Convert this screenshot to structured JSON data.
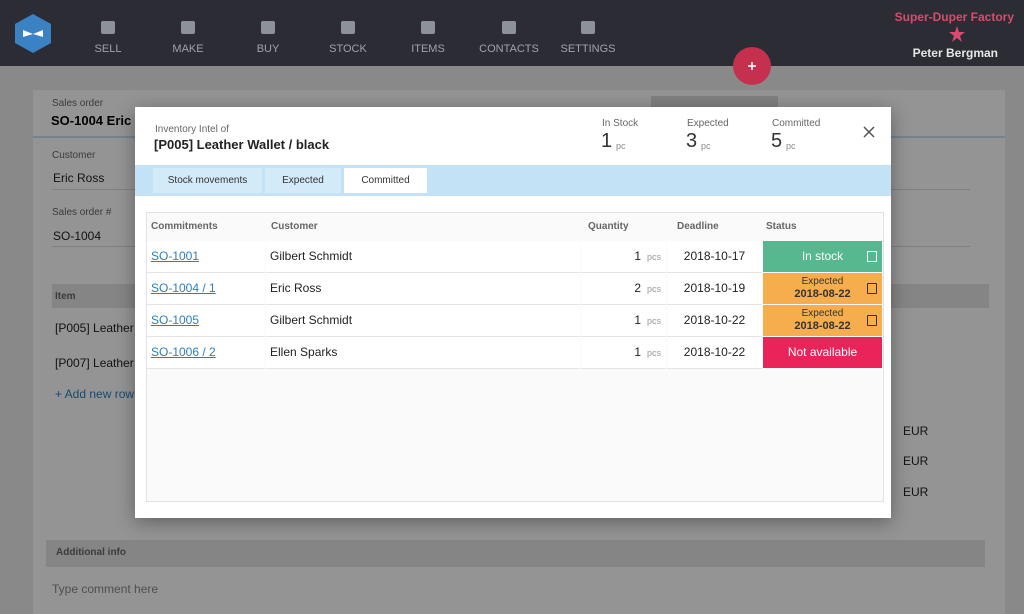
{
  "nav": {
    "items": [
      "SELL",
      "MAKE",
      "BUY",
      "STOCK",
      "ITEMS",
      "CONTACTS",
      "SETTINGS"
    ],
    "company": "Super-Duper Factory",
    "user": "Peter Bergman"
  },
  "order": {
    "heading": "Sales order",
    "title": "SO-1004  Eric",
    "customer_label": "Customer",
    "customer": "Eric Ross",
    "number_label": "Sales order #",
    "number": "SO-1004",
    "item_header": "Item",
    "items": [
      "[P005] Leather",
      "[P007] Leather"
    ],
    "add_row": "+ Add new row",
    "currency": [
      "EUR",
      "EUR",
      "EUR"
    ],
    "info_header": "Additional info",
    "comment_placeholder": "Type comment here"
  },
  "modal": {
    "subtitle": "Inventory Intel of",
    "title": "[P005] Leather Wallet / black",
    "stats": [
      {
        "label": "In Stock",
        "value": "1",
        "unit": "pc"
      },
      {
        "label": "Expected",
        "value": "3",
        "unit": "pc"
      },
      {
        "label": "Committed",
        "value": "5",
        "unit": "pc"
      }
    ],
    "tabs": [
      "Stock movements",
      "Expected",
      "Committed"
    ],
    "active_tab": 2,
    "table": {
      "columns": [
        "Commitments",
        "Customer",
        "Quantity",
        "Deadline",
        "Status"
      ],
      "rows": [
        {
          "order": "SO-1001",
          "customer": "Gilbert Schmidt",
          "quantity": "1",
          "unit": "pcs",
          "deadline": "2018-10-17",
          "status": {
            "label": "In stock",
            "color": "#57b78f"
          }
        },
        {
          "order": "SO-1004 / 1",
          "customer": "Eric Ross",
          "quantity": "2",
          "unit": "pcs",
          "deadline": "2018-10-19",
          "status": {
            "label": "Expected",
            "date": "2018-08-22",
            "color": "#f5ad4e"
          }
        },
        {
          "order": "SO-1005",
          "customer": "Gilbert Schmidt",
          "quantity": "1",
          "unit": "pcs",
          "deadline": "2018-10-22",
          "status": {
            "label": "Expected",
            "date": "2018-08-22",
            "color": "#f5ad4e"
          }
        },
        {
          "order": "SO-1006 / 2",
          "customer": "Ellen Sparks",
          "quantity": "1",
          "unit": "pcs",
          "deadline": "2018-10-22",
          "status": {
            "label": "Not available",
            "color": "#e8245a"
          }
        }
      ]
    }
  }
}
